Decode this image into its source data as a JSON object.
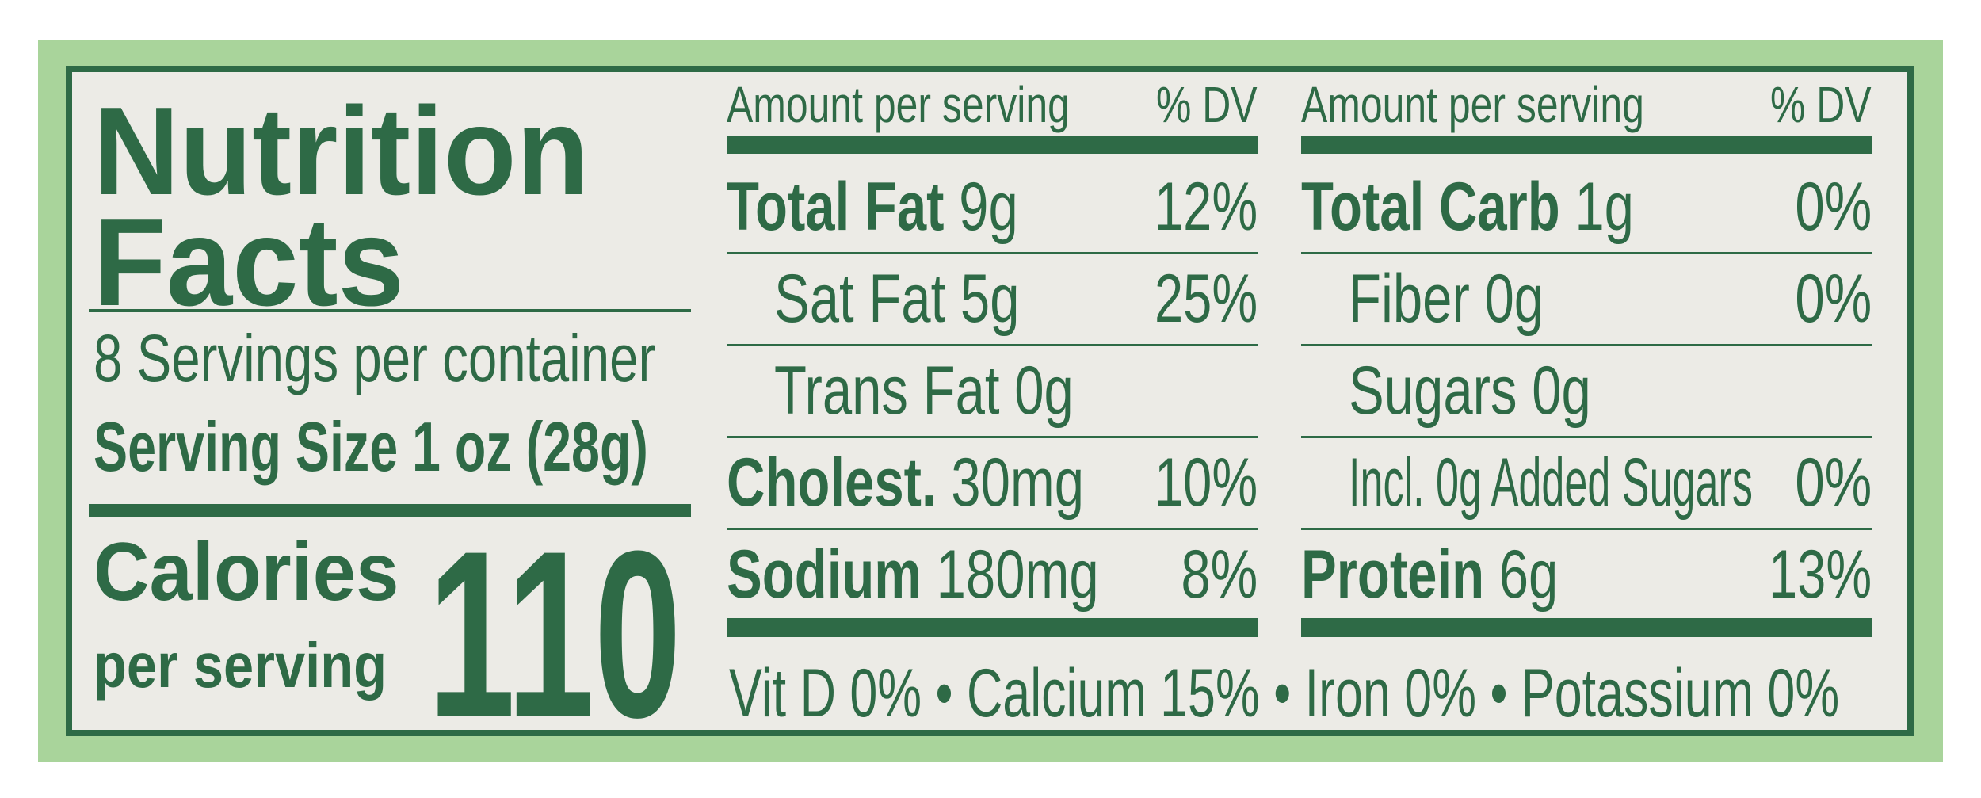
{
  "label": {
    "title_line1": "Nutrition",
    "title_line2": "Facts",
    "servings_per_container": "8 Servings per container",
    "serving_size": "Serving Size 1 oz (28g)",
    "calories_label": "Calories",
    "calories_sub": "per serving",
    "calories_value": "110",
    "left_table": {
      "header_amount": "Amount per serving",
      "header_dv": "% DV",
      "rows": [
        {
          "name": "Total Fat",
          "amount": "9g",
          "dv": "12%",
          "bold": true,
          "indent": false
        },
        {
          "name": "Sat Fat",
          "amount": "5g",
          "dv": "25%",
          "bold": false,
          "indent": true
        },
        {
          "name": "Trans Fat",
          "amount": "0g",
          "dv": "",
          "bold": false,
          "indent": true
        },
        {
          "name": "Cholest.",
          "amount": "30mg",
          "dv": "10%",
          "bold": true,
          "indent": false
        },
        {
          "name": "Sodium",
          "amount": "180mg",
          "dv": "8%",
          "bold": true,
          "indent": false
        }
      ]
    },
    "right_table": {
      "header_amount": "Amount per serving",
      "header_dv": "% DV",
      "rows": [
        {
          "name": "Total Carb",
          "amount": "1g",
          "dv": "0%",
          "bold": true,
          "indent": false
        },
        {
          "name": "Fiber",
          "amount": "0g",
          "dv": "0%",
          "bold": false,
          "indent": true
        },
        {
          "name": "Sugars",
          "amount": "0g",
          "dv": "",
          "bold": false,
          "indent": true
        },
        {
          "name": "Incl. 0g Added Sugars",
          "amount": "",
          "dv": "0%",
          "bold": false,
          "indent": true
        },
        {
          "name": "Protein",
          "amount": "6g",
          "dv": "13%",
          "bold": true,
          "indent": false
        }
      ]
    },
    "footer": "Vit D 0% • Calcium 15% • Iron 0% • Potassium 0%",
    "colors": {
      "ink": "#2e6a46",
      "background": "#ecebe6",
      "border": "#a9d49b"
    }
  }
}
